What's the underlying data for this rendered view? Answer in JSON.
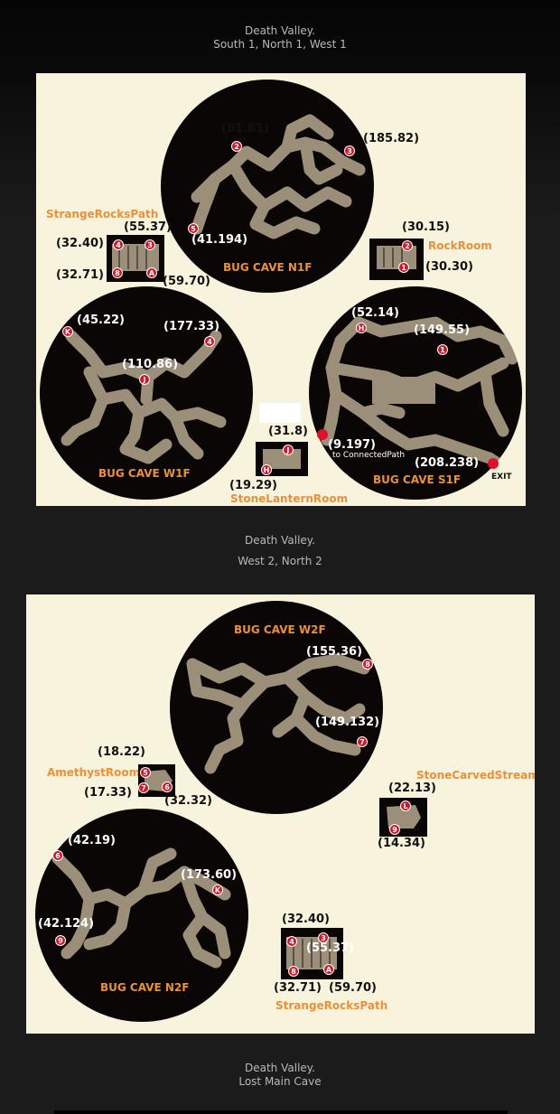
{
  "section1": {
    "line1": "Death Valley.",
    "line2": "South 1, North 1, West 1"
  },
  "section2": {
    "line1": "Death Valley.",
    "line2": "West 2, North 2"
  },
  "section3": {
    "line1": "Death Valley.",
    "line2": "Lost Main Cave"
  },
  "map1": {
    "caves": {
      "n1f": "BUG CAVE N1F",
      "w1f": "BUG CAVE W1F",
      "s1f": "BUG CAVE S1F"
    },
    "rooms": {
      "strange": "StrangeRocksPath",
      "rock": "RockRoom",
      "lantern": "StoneLanternRoom"
    },
    "coords": {
      "c81_81": "(81.81)",
      "c185_82": "(185.82)",
      "c41_194": "(41.194)",
      "c55_37": "(55.37)",
      "c32_40": "(32.40)",
      "c32_71": "(32.71)",
      "c59_70": "(59.70)",
      "c30_15": "(30.15)",
      "c30_30": "(30.30)",
      "c45_22": "(45.22)",
      "c177_33": "(177.33)",
      "c110_86": "(110.86)",
      "c52_14": "(52.14)",
      "c149_55": "(149.55)",
      "c9_197": "(9.197)",
      "c208_238": "(208.238)",
      "c31_8": "(31.8)",
      "c19_29": "(19.29)"
    },
    "notes": {
      "connected": "to ConnectedPath",
      "exit": "EXIT"
    },
    "markers": {
      "m1": "1",
      "m2": "2",
      "m3": "3",
      "m4": "4",
      "m5": "5",
      "m8": "8",
      "mA": "A",
      "mH": "H",
      "mJ": "J",
      "mK": "K"
    }
  },
  "map2": {
    "caves": {
      "w2f": "BUG CAVE W2F",
      "n2f": "BUG CAVE N2F"
    },
    "rooms": {
      "amethyst": "AmethystRoom",
      "stream": "StoneCarvedStream",
      "strange": "StrangeRocksPath"
    },
    "coords": {
      "c155_36": "(155.36)",
      "c149_132": "(149.132)",
      "c18_22": "(18.22)",
      "c17_33": "(17.33)",
      "c32_32": "(32.32)",
      "c22_13": "(22.13)",
      "c14_34": "(14.34)",
      "c42_19": "(42.19)",
      "c173_60": "(173.60)",
      "c42_124": "(42.124)",
      "c32_40": "(32.40)",
      "c55_37": "(55.37)",
      "c32_71": "(32.71)",
      "c59_70": "(59.70)"
    },
    "markers": {
      "m3": "3",
      "m4": "4",
      "m5": "5",
      "m6": "6",
      "m7": "7",
      "m8": "8",
      "m9": "9",
      "mA": "A",
      "mK": "K",
      "mL": "L"
    }
  },
  "colors": {
    "panel": "#f8f3dc",
    "cave_floor": "#9c8f7a",
    "cave_bg": "#0b0606",
    "label_orange": "#e8913a",
    "marker_red": "#cc1a2a"
  }
}
